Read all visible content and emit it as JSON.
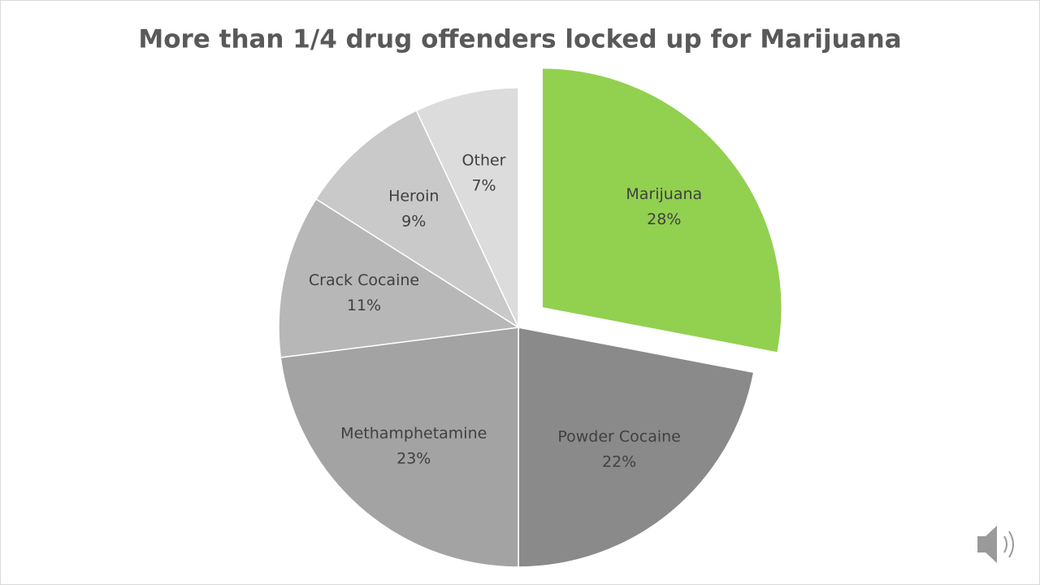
{
  "chart_data": {
    "type": "pie",
    "title": "More than 1/4 drug offenders locked up for Marijuana",
    "categories": [
      "Marijuana",
      "Powder Cocaine",
      "Methamphetamine",
      "Crack Cocaine",
      "Heroin",
      "Other"
    ],
    "values": [
      28,
      22,
      23,
      11,
      9,
      7
    ],
    "value_labels": [
      "28%",
      "22%",
      "23%",
      "11%",
      "9%",
      "7%"
    ],
    "colors": [
      "#92d050",
      "#8a8a8a",
      "#a3a3a3",
      "#b7b7b7",
      "#c9c9c9",
      "#dcdcdc"
    ]
  }
}
